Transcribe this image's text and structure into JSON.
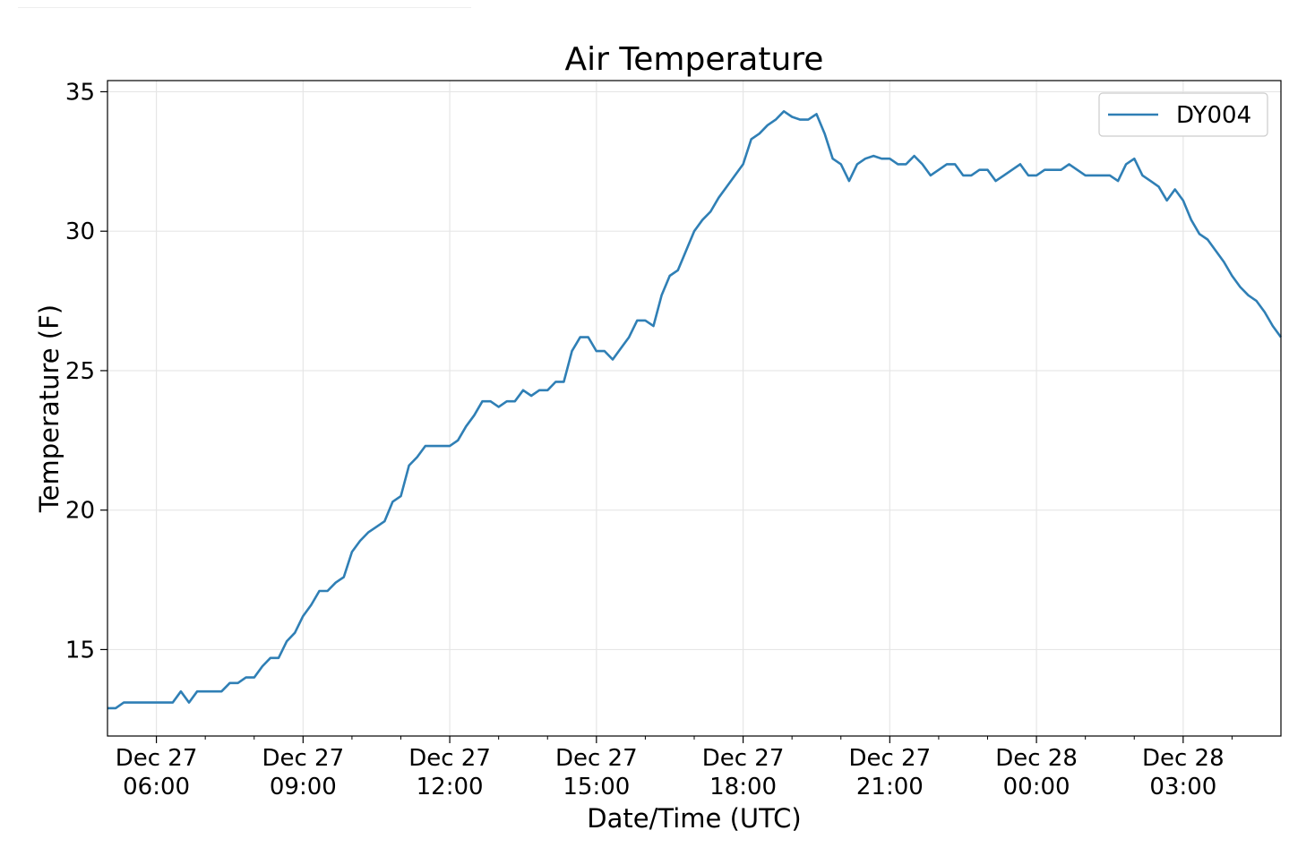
{
  "chart_data": {
    "type": "line",
    "title": "Air Temperature",
    "xlabel": "Date/Time (UTC)",
    "ylabel": "Temperature (F)",
    "x_ticks": [
      {
        "date": "Dec 27",
        "time": "06:00",
        "hour": 6
      },
      {
        "date": "Dec 27",
        "time": "09:00",
        "hour": 9
      },
      {
        "date": "Dec 27",
        "time": "12:00",
        "hour": 12
      },
      {
        "date": "Dec 27",
        "time": "15:00",
        "hour": 15
      },
      {
        "date": "Dec 27",
        "time": "18:00",
        "hour": 18
      },
      {
        "date": "Dec 27",
        "time": "21:00",
        "hour": 21
      },
      {
        "date": "Dec 28",
        "time": "00:00",
        "hour": 24
      },
      {
        "date": "Dec 28",
        "time": "03:00",
        "hour": 27
      }
    ],
    "x_minor_hours": [
      7,
      8,
      10,
      11,
      13,
      14,
      16,
      17,
      19,
      20,
      22,
      23,
      25,
      26,
      28
    ],
    "xlim_hours": [
      5.0,
      29.0
    ],
    "y_ticks": [
      15,
      20,
      25,
      30,
      35
    ],
    "ylim": [
      11.9,
      35.4
    ],
    "grid": true,
    "legend": {
      "placement": "top-right"
    },
    "series": [
      {
        "name": "DY004",
        "color": "#2f7fb5",
        "x_hours": [
          5.0,
          5.167,
          5.333,
          5.5,
          5.667,
          5.833,
          6.0,
          6.167,
          6.333,
          6.5,
          6.667,
          6.833,
          7.0,
          7.167,
          7.333,
          7.5,
          7.667,
          7.833,
          8.0,
          8.167,
          8.333,
          8.5,
          8.667,
          8.833,
          9.0,
          9.167,
          9.333,
          9.5,
          9.667,
          9.833,
          10.0,
          10.167,
          10.333,
          10.5,
          10.667,
          10.833,
          11.0,
          11.167,
          11.333,
          11.5,
          11.667,
          11.833,
          12.0,
          12.167,
          12.333,
          12.5,
          12.667,
          12.833,
          13.0,
          13.167,
          13.333,
          13.5,
          13.667,
          13.833,
          14.0,
          14.167,
          14.333,
          14.5,
          14.667,
          14.833,
          15.0,
          15.167,
          15.333,
          15.5,
          15.667,
          15.833,
          16.0,
          16.167,
          16.333,
          16.5,
          16.667,
          16.833,
          17.0,
          17.167,
          17.333,
          17.5,
          17.667,
          17.833,
          18.0,
          18.167,
          18.333,
          18.5,
          18.667,
          18.833,
          19.0,
          19.167,
          19.333,
          19.5,
          19.667,
          19.833,
          20.0,
          20.167,
          20.333,
          20.5,
          20.667,
          20.833,
          21.0,
          21.167,
          21.333,
          21.5,
          21.667,
          21.833,
          22.0,
          22.167,
          22.333,
          22.5,
          22.667,
          22.833,
          23.0,
          23.167,
          23.333,
          23.5,
          23.667,
          23.833,
          24.0,
          24.167,
          24.333,
          24.5,
          24.667,
          24.833,
          25.0,
          25.167,
          25.333,
          25.5,
          25.667,
          25.833,
          26.0,
          26.167,
          26.333,
          26.5,
          26.667,
          26.833,
          27.0,
          27.167,
          27.333,
          27.5,
          27.667,
          27.833,
          28.0,
          28.167,
          28.333,
          28.5,
          28.667,
          28.833,
          29.0
        ],
        "values": [
          12.9,
          12.9,
          13.1,
          13.1,
          13.1,
          13.1,
          13.1,
          13.1,
          13.1,
          13.5,
          13.1,
          13.5,
          13.5,
          13.5,
          13.5,
          13.8,
          13.8,
          14.0,
          14.0,
          14.4,
          14.7,
          14.7,
          15.3,
          15.6,
          16.2,
          16.6,
          17.1,
          17.1,
          17.4,
          17.6,
          18.5,
          18.9,
          19.2,
          19.4,
          19.6,
          20.3,
          20.5,
          21.6,
          21.9,
          22.3,
          22.3,
          22.3,
          22.3,
          22.5,
          23.0,
          23.4,
          23.9,
          23.9,
          23.7,
          23.9,
          23.9,
          24.3,
          24.1,
          24.3,
          24.3,
          24.6,
          24.6,
          25.7,
          26.2,
          26.2,
          25.7,
          25.7,
          25.4,
          25.8,
          26.2,
          26.8,
          26.8,
          26.6,
          27.7,
          28.4,
          28.6,
          29.3,
          30.0,
          30.4,
          30.7,
          31.2,
          31.6,
          32.0,
          32.4,
          33.3,
          33.5,
          33.8,
          34.0,
          34.3,
          34.1,
          34.0,
          34.0,
          34.2,
          33.5,
          32.6,
          32.4,
          31.8,
          32.4,
          32.6,
          32.7,
          32.6,
          32.6,
          32.4,
          32.4,
          32.7,
          32.4,
          32.0,
          32.2,
          32.4,
          32.4,
          32.0,
          32.0,
          32.2,
          32.2,
          31.8,
          32.0,
          32.2,
          32.4,
          32.0,
          32.0,
          32.2,
          32.2,
          32.2,
          32.4,
          32.2,
          32.0,
          32.0,
          32.0,
          32.0,
          31.8,
          32.4,
          32.6,
          32.0,
          31.8,
          31.6,
          31.1,
          31.5,
          31.1,
          30.4,
          29.9,
          29.7,
          29.3,
          28.9,
          28.4,
          28.0,
          27.7,
          27.5,
          27.1,
          26.6,
          26.2
        ]
      }
    ]
  }
}
